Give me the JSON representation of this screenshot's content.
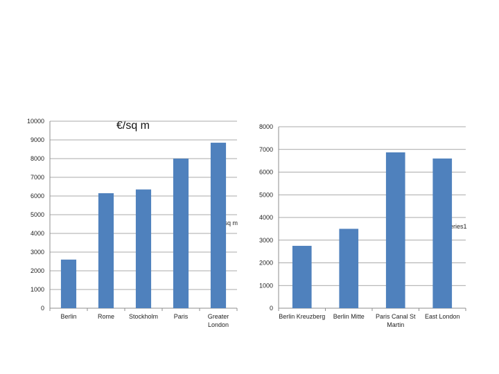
{
  "chart_data": [
    {
      "type": "bar",
      "title": "€/sq m",
      "legend": {
        "label": "€/sq m",
        "placement": "right"
      },
      "categories": [
        "Berlin",
        "Rome",
        "Stockholm",
        "Paris",
        "Greater London"
      ],
      "category_lines": [
        [
          "Berlin"
        ],
        [
          "Rome"
        ],
        [
          "Stockholm"
        ],
        [
          "Paris"
        ],
        [
          "Greater",
          "London"
        ]
      ],
      "series": [
        {
          "name": "€/sq m",
          "values": [
            2600,
            6150,
            6350,
            8000,
            8850
          ]
        }
      ],
      "ylim": [
        0,
        10000
      ],
      "yticks": [
        0,
        1000,
        2000,
        3000,
        4000,
        5000,
        6000,
        7000,
        8000,
        9000,
        10000
      ],
      "grid": true,
      "color": "#4f81bd"
    },
    {
      "type": "bar",
      "title": "",
      "legend": {
        "label": "Series1",
        "placement": "right"
      },
      "categories": [
        "Berlin Kreuzberg",
        "Berlin Mitte",
        "Paris Canal St Martin",
        "East London"
      ],
      "category_lines": [
        [
          "Berlin Kreuzberg"
        ],
        [
          "Berlin Mitte"
        ],
        [
          "Paris Canal St",
          "Martin"
        ],
        [
          "East London"
        ]
      ],
      "series": [
        {
          "name": "Series1",
          "values": [
            2750,
            3500,
            6870,
            6600
          ]
        }
      ],
      "ylim": [
        0,
        8000
      ],
      "yticks": [
        0,
        1000,
        2000,
        3000,
        4000,
        5000,
        6000,
        7000,
        8000
      ],
      "grid": true,
      "color": "#4f81bd"
    }
  ]
}
